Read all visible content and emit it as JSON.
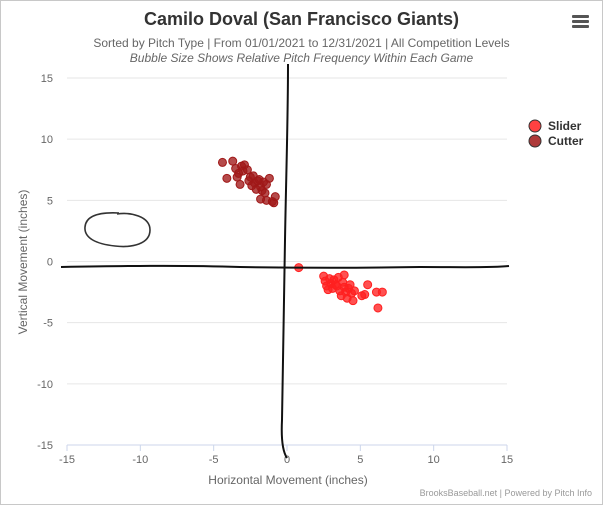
{
  "header": {
    "title": "Camilo Doval (San Francisco Giants)",
    "subtitle": "Sorted by Pitch Type | From 01/01/2021 to 12/31/2021 | All Competition Levels",
    "note": "Bubble Size Shows Relative Pitch Frequency Within Each Game",
    "menu_icon": "hamburger-menu-icon"
  },
  "credits": "BrooksBaseball.net | Powered by Pitch Info",
  "chart_data": {
    "type": "scatter",
    "title": "Camilo Doval (San Francisco Giants)",
    "xlabel": "Horizontal Movement (inches)",
    "ylabel": "Vertical Movement (inches)",
    "xlim": [
      -15,
      15
    ],
    "ylim": [
      -15,
      15
    ],
    "xticks": [
      -15,
      -10,
      -5,
      0,
      5,
      10,
      15
    ],
    "yticks": [
      -15,
      -10,
      -5,
      0,
      5,
      10,
      15
    ],
    "grid": true,
    "legend_position": "top-right",
    "series": [
      {
        "name": "Slider",
        "color": "#ff2020",
        "points": [
          [
            0.8,
            -0.5
          ],
          [
            2.5,
            -1.2
          ],
          [
            2.6,
            -1.6
          ],
          [
            2.7,
            -2.0
          ],
          [
            2.9,
            -1.4
          ],
          [
            3.0,
            -1.8
          ],
          [
            3.1,
            -2.2
          ],
          [
            3.2,
            -1.5
          ],
          [
            3.3,
            -1.9
          ],
          [
            3.5,
            -1.3
          ],
          [
            3.6,
            -2.4
          ],
          [
            3.7,
            -2.8
          ],
          [
            3.8,
            -1.7
          ],
          [
            3.9,
            -2.1
          ],
          [
            4.0,
            -2.5
          ],
          [
            4.1,
            -3.0
          ],
          [
            4.2,
            -2.2
          ],
          [
            4.3,
            -1.9
          ],
          [
            4.4,
            -2.6
          ],
          [
            4.5,
            -3.2
          ],
          [
            4.6,
            -2.4
          ],
          [
            3.4,
            -2.0
          ],
          [
            2.8,
            -2.3
          ],
          [
            3.9,
            -1.1
          ],
          [
            5.1,
            -2.8
          ],
          [
            5.3,
            -2.7
          ],
          [
            5.5,
            -1.9
          ],
          [
            6.1,
            -2.5
          ],
          [
            6.5,
            -2.5
          ],
          [
            6.2,
            -3.8
          ]
        ]
      },
      {
        "name": "Cutter",
        "color": "#a01818",
        "points": [
          [
            -4.4,
            8.1
          ],
          [
            -4.1,
            6.8
          ],
          [
            -3.7,
            8.2
          ],
          [
            -3.5,
            7.6
          ],
          [
            -3.4,
            6.9
          ],
          [
            -3.3,
            7.2
          ],
          [
            -3.2,
            6.3
          ],
          [
            -3.1,
            7.8
          ],
          [
            -3.0,
            7.4
          ],
          [
            -2.9,
            7.9
          ],
          [
            -2.7,
            7.5
          ],
          [
            -2.6,
            6.6
          ],
          [
            -2.5,
            6.9
          ],
          [
            -2.4,
            6.2
          ],
          [
            -2.3,
            7.0
          ],
          [
            -2.2,
            6.4
          ],
          [
            -2.1,
            5.9
          ],
          [
            -2.0,
            6.6
          ],
          [
            -1.9,
            6.7
          ],
          [
            -1.8,
            6.1
          ],
          [
            -1.7,
            5.8
          ],
          [
            -1.6,
            6.5
          ],
          [
            -1.5,
            5.6
          ],
          [
            -1.4,
            6.3
          ],
          [
            -1.2,
            6.8
          ],
          [
            -1.8,
            5.1
          ],
          [
            -1.4,
            5.0
          ],
          [
            -1.0,
            4.9
          ],
          [
            -0.8,
            5.3
          ],
          [
            -0.9,
            4.8
          ]
        ]
      }
    ]
  }
}
